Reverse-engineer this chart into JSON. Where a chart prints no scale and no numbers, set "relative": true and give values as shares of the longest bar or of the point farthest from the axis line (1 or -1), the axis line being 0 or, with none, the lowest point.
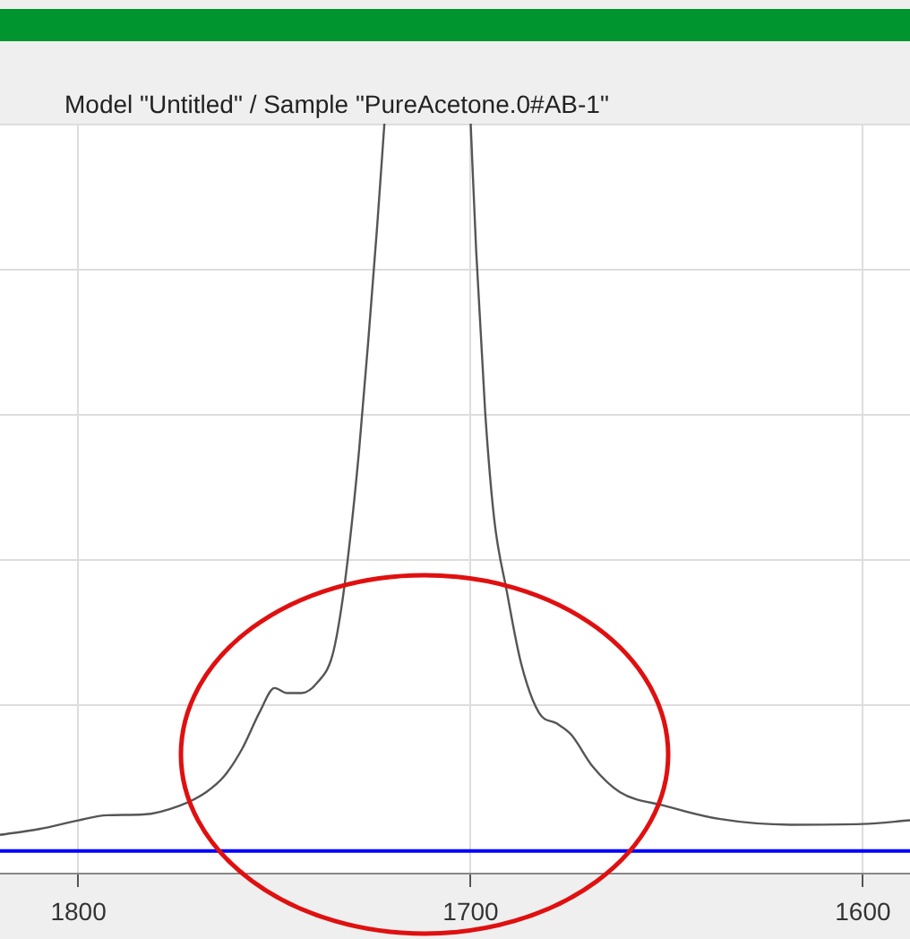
{
  "chart_data": {
    "type": "line",
    "title": "Model \"Untitled\" / Sample \"PureAcetone.0#AB-1\"",
    "relative": true,
    "xlim": [
      1820,
      1588
    ],
    "xticks": [
      1800,
      1700,
      1600
    ],
    "grid": true,
    "legend": false,
    "marker": "none",
    "line_style": "solid",
    "series": [
      {
        "color": "#555555",
        "x": [
          1820,
          1810,
          1800,
          1792.7,
          1783.5,
          1774.3,
          1767.4,
          1762.8,
          1758.3,
          1753.7,
          1750,
          1746.8,
          1743.1,
          1739,
          1735.3,
          1733,
          1730.7,
          1728.4,
          1726.1,
          1723.8,
          1722,
          1711,
          1700,
          1698.6,
          1696.3,
          1694,
          1690.8,
          1687.2,
          1682.6,
          1678,
          1674.4,
          1668.9,
          1662,
          1650.5,
          1636.7,
          1618.4,
          1600,
          1588
        ],
        "values": [
          0.022,
          0.03,
          0.042,
          0.049,
          0.05,
          0.062,
          0.081,
          0.103,
          0.14,
          0.192,
          0.224,
          0.217,
          0.217,
          0.232,
          0.268,
          0.333,
          0.431,
          0.554,
          0.702,
          0.862,
          1,
          null,
          1,
          0.825,
          0.603,
          0.456,
          0.357,
          0.259,
          0.19,
          0.175,
          0.16,
          0.116,
          0.081,
          0.062,
          0.044,
          0.036,
          0.037,
          0.042
        ]
      },
      {
        "color": "#0000ff",
        "x": [
          1820,
          1588
        ],
        "values": [
          0,
          0
        ]
      }
    ]
  }
}
